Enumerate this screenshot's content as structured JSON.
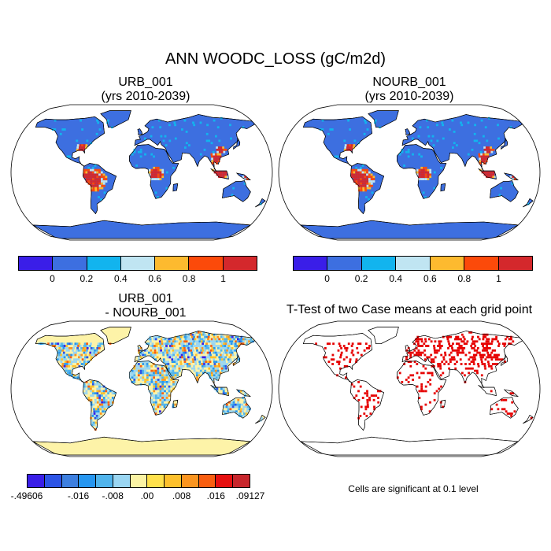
{
  "title": "ANN WOODC_LOSS (gC/m2d)",
  "panels": {
    "tl": {
      "line1": "URB_001",
      "line2": "(yrs 2010-2039)"
    },
    "tr": {
      "line1": "NOURB_001",
      "line2": "(yrs 2010-2039)"
    },
    "bl": {
      "line1": "URB_001",
      "line2": "- NOURB_001"
    },
    "br": {
      "line1": "T-Test of two Case means at each grid point"
    }
  },
  "colorbar_top": {
    "colors": [
      "#3a1ee8",
      "#3d6fe0",
      "#12b4ee",
      "#c0e5f2",
      "#fdba2f",
      "#fc4a0a",
      "#d4282c"
    ],
    "labels": [
      "0",
      "0.2",
      "0.4",
      "0.6",
      "0.8",
      "1"
    ]
  },
  "colorbar_diff": {
    "colors": [
      "#3a1ee8",
      "#2c54e6",
      "#3d7fe0",
      "#2696f0",
      "#50b4ec",
      "#9ad6f2",
      "#fbf3a4",
      "#ffe14c",
      "#fdc02c",
      "#fb9520",
      "#f95e10",
      "#e61010",
      "#c8262c"
    ],
    "labels": [
      "-.49606",
      "-.016",
      "-.008",
      ".00",
      ".008",
      ".016",
      ".09127"
    ]
  },
  "note": "Cells are significant at 0.1 level",
  "map_colors": {
    "ocean": "#ffffff",
    "land_base": "#3d6fe0",
    "diff_base": "#fdf3a8",
    "signif": "#e60000"
  }
}
